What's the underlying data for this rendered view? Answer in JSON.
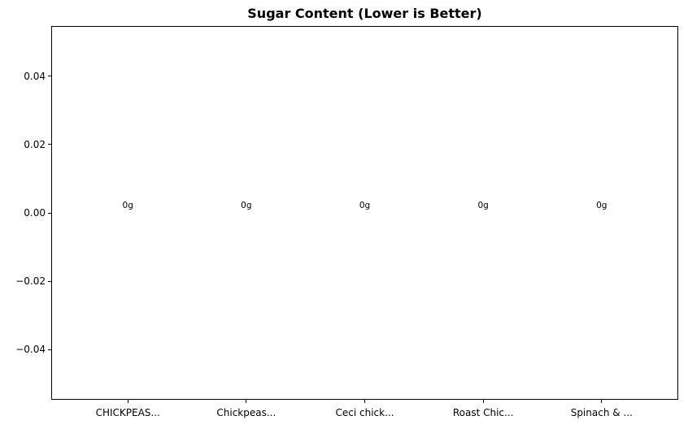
{
  "chart_data": {
    "type": "bar",
    "title": "Sugar Content (Lower is Better)",
    "categories": [
      "CHICKPEAS...",
      "Chickpeas...",
      "Ceci chick...",
      "Roast Chic...",
      "Spinach & ..."
    ],
    "values": [
      0,
      0,
      0,
      0,
      0
    ],
    "bar_labels": [
      "0g",
      "0g",
      "0g",
      "0g",
      "0g"
    ],
    "unit": "g",
    "xlabel": "",
    "ylabel": "",
    "ylim": [
      -0.0545,
      0.0545
    ],
    "xlim": [
      -0.64,
      4.64
    ],
    "yticks": [
      -0.04,
      -0.02,
      0.0,
      0.02,
      0.04
    ],
    "ytick_labels": [
      "−0.04",
      "−0.02",
      "0.00",
      "0.02",
      "0.04"
    ],
    "grid": false,
    "legend": null,
    "colors": {
      "text": "#000000",
      "axis": "#000000",
      "background": "#ffffff",
      "bar": "#1f77b4"
    }
  }
}
